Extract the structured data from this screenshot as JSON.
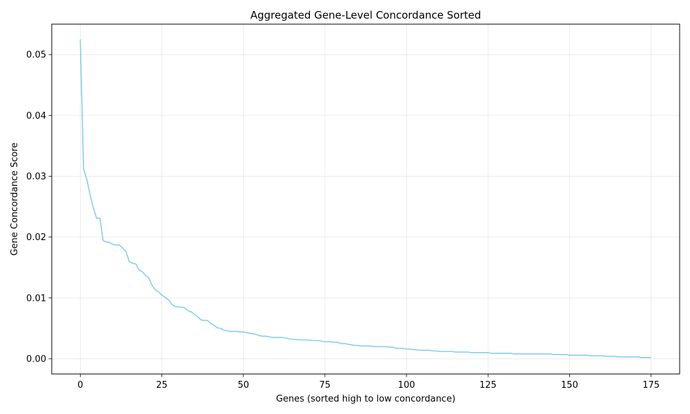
{
  "chart_data": {
    "type": "line",
    "title": "Aggregated Gene-Level Concordance Sorted",
    "xlabel": "Genes (sorted high to low concordance)",
    "ylabel": "Gene Concordance Score",
    "xlim": [
      -8.75,
      183.75
    ],
    "ylim": [
      -0.0025,
      0.055
    ],
    "xticks": [
      0,
      25,
      50,
      75,
      100,
      125,
      150,
      175
    ],
    "yticks": [
      0.0,
      0.01,
      0.02,
      0.03,
      0.04,
      0.05
    ],
    "ytick_labels": [
      "0.00",
      "0.01",
      "0.02",
      "0.03",
      "0.04",
      "0.05"
    ],
    "grid": true,
    "series": [
      {
        "color": "#87CEEB",
        "x": [
          0,
          1,
          2,
          3,
          4,
          5,
          6,
          7,
          8,
          9,
          10,
          11,
          12,
          13,
          14,
          15,
          16,
          17,
          18,
          19,
          20,
          21,
          22,
          23,
          24,
          25,
          26,
          27,
          28,
          29,
          30,
          31,
          32,
          33,
          34,
          35,
          36,
          37,
          38,
          39,
          40,
          41,
          42,
          43,
          44,
          45,
          46,
          47,
          48,
          49,
          50,
          51,
          52,
          53,
          54,
          55,
          56,
          57,
          58,
          59,
          60,
          61,
          62,
          63,
          64,
          65,
          66,
          67,
          68,
          69,
          70,
          71,
          72,
          73,
          74,
          75,
          76,
          77,
          78,
          79,
          80,
          81,
          82,
          83,
          84,
          85,
          86,
          87,
          88,
          89,
          90,
          91,
          92,
          93,
          94,
          95,
          96,
          97,
          98,
          99,
          100,
          101,
          102,
          103,
          104,
          105,
          106,
          107,
          108,
          109,
          110,
          111,
          112,
          113,
          114,
          115,
          116,
          117,
          118,
          119,
          120,
          121,
          122,
          123,
          124,
          125,
          126,
          127,
          128,
          129,
          130,
          131,
          132,
          133,
          134,
          135,
          136,
          137,
          138,
          139,
          140,
          141,
          142,
          143,
          144,
          145,
          146,
          147,
          148,
          149,
          150,
          151,
          152,
          153,
          154,
          155,
          156,
          157,
          158,
          159,
          160,
          161,
          162,
          163,
          164,
          165,
          166,
          167,
          168,
          169,
          170,
          171,
          172,
          173,
          174,
          175
        ],
        "y": [
          0.0525,
          0.0312,
          0.0295,
          0.027,
          0.0248,
          0.0231,
          0.0231,
          0.0194,
          0.0192,
          0.0191,
          0.0188,
          0.0187,
          0.0187,
          0.0182,
          0.0176,
          0.016,
          0.0157,
          0.0156,
          0.0146,
          0.0143,
          0.0137,
          0.0133,
          0.0121,
          0.0113,
          0.011,
          0.0105,
          0.0101,
          0.0097,
          0.009,
          0.0086,
          0.0085,
          0.0085,
          0.0084,
          0.0079,
          0.0077,
          0.0073,
          0.0069,
          0.0064,
          0.0063,
          0.0063,
          0.0058,
          0.0055,
          0.0051,
          0.005,
          0.0047,
          0.0046,
          0.0045,
          0.0045,
          0.0045,
          0.0044,
          0.0044,
          0.0043,
          0.0042,
          0.0041,
          0.004,
          0.0038,
          0.0037,
          0.0037,
          0.0036,
          0.0035,
          0.0035,
          0.0035,
          0.0035,
          0.0034,
          0.0033,
          0.0032,
          0.0032,
          0.0031,
          0.0031,
          0.0031,
          0.0031,
          0.003,
          0.003,
          0.003,
          0.0029,
          0.0028,
          0.0028,
          0.0028,
          0.0027,
          0.0027,
          0.0025,
          0.0025,
          0.0024,
          0.0023,
          0.0022,
          0.0022,
          0.0021,
          0.0021,
          0.0021,
          0.0021,
          0.002,
          0.002,
          0.002,
          0.002,
          0.002,
          0.0019,
          0.0019,
          0.0017,
          0.0017,
          0.0017,
          0.0016,
          0.0016,
          0.0015,
          0.0015,
          0.0014,
          0.0014,
          0.0014,
          0.0014,
          0.0013,
          0.0013,
          0.0012,
          0.0012,
          0.0012,
          0.0012,
          0.0012,
          0.0011,
          0.0011,
          0.0011,
          0.0011,
          0.0011,
          0.001,
          0.001,
          0.001,
          0.001,
          0.001,
          0.001,
          0.0009,
          0.0009,
          0.0009,
          0.0009,
          0.0009,
          0.0009,
          0.0009,
          0.0008,
          0.0008,
          0.0008,
          0.0008,
          0.0008,
          0.0008,
          0.0008,
          0.0008,
          0.0008,
          0.0008,
          0.0008,
          0.0008,
          0.0007,
          0.0007,
          0.0007,
          0.0007,
          0.0007,
          0.0006,
          0.0006,
          0.0006,
          0.0006,
          0.0006,
          0.0006,
          0.0005,
          0.0005,
          0.0005,
          0.0005,
          0.0005,
          0.0004,
          0.0004,
          0.0004,
          0.0004,
          0.0003,
          0.0003,
          0.0003,
          0.0003,
          0.0003,
          0.0003,
          0.0003,
          0.0002,
          0.0002,
          0.0002,
          0.0002
        ]
      }
    ]
  }
}
